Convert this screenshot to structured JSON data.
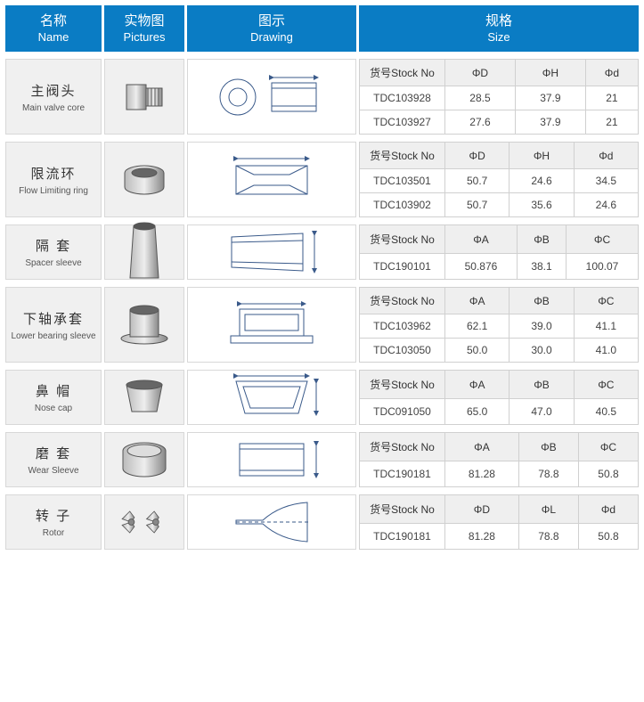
{
  "header": {
    "name": {
      "cn": "名称",
      "en": "Name"
    },
    "pictures": {
      "cn": "实物图",
      "en": "Pictures"
    },
    "drawing": {
      "cn": "图示",
      "en": "Drawing"
    },
    "size": {
      "cn": "规格",
      "en": "Size"
    }
  },
  "stockno_label": "货号Stock No",
  "colors": {
    "header_bg": "#0a7cc4",
    "header_fg": "#ffffff",
    "cell_bg": "#f0f0f0",
    "border": "#d8d8d8",
    "th_bg": "#efefef"
  },
  "sections": [
    {
      "name_cn": "主阀头",
      "name_en": "Main valve core",
      "cols": [
        "ΦD",
        "ΦH",
        "Φd"
      ],
      "rows": [
        {
          "stock": "TDC103928",
          "v": [
            "28.5",
            "37.9",
            "21"
          ]
        },
        {
          "stock": "TDC103927",
          "v": [
            "27.6",
            "37.9",
            "21"
          ]
        }
      ],
      "pic_kind": "cylinder-thread",
      "draw_kind": "cross-section-1"
    },
    {
      "name_cn": "限流环",
      "name_en": "Flow Limiting ring",
      "cols": [
        "ΦD",
        "ΦH",
        "Φd"
      ],
      "rows": [
        {
          "stock": "TDC103501",
          "v": [
            "50.7",
            "24.6",
            "34.5"
          ]
        },
        {
          "stock": "TDC103902",
          "v": [
            "50.7",
            "35.6",
            "24.6"
          ]
        }
      ],
      "pic_kind": "ring",
      "draw_kind": "cross-section-2"
    },
    {
      "name_cn": "隔 套",
      "name_en": "Spacer sleeve",
      "cols": [
        "ΦA",
        "ΦB",
        "ΦC"
      ],
      "rows": [
        {
          "stock": "TDC190101",
          "v": [
            "50.876",
            "38.1",
            "100.07"
          ]
        }
      ],
      "pic_kind": "tall-sleeve",
      "draw_kind": "cross-section-3"
    },
    {
      "name_cn": "下轴承套",
      "name_en": "Lower bearing sleeve",
      "cols": [
        "ΦA",
        "ΦB",
        "ΦC"
      ],
      "rows": [
        {
          "stock": "TDC103962",
          "v": [
            "62.1",
            "39.0",
            "41.1"
          ]
        },
        {
          "stock": "TDC103050",
          "v": [
            "50.0",
            "30.0",
            "41.0"
          ]
        }
      ],
      "pic_kind": "flange-sleeve",
      "draw_kind": "cross-section-4"
    },
    {
      "name_cn": "鼻 帽",
      "name_en": "Nose cap",
      "cols": [
        "ΦA",
        "ΦB",
        "ΦC"
      ],
      "rows": [
        {
          "stock": "TDC091050",
          "v": [
            "65.0",
            "47.0",
            "40.5"
          ]
        }
      ],
      "pic_kind": "cone-cap",
      "draw_kind": "cross-section-5"
    },
    {
      "name_cn": "磨 套",
      "name_en": "Wear Sleeve",
      "cols": [
        "ΦA",
        "ΦB",
        "ΦC"
      ],
      "rows": [
        {
          "stock": "TDC190181",
          "v": [
            "81.28",
            "78.8",
            "50.8"
          ]
        }
      ],
      "pic_kind": "short-ring",
      "draw_kind": "cross-section-6"
    },
    {
      "name_cn": "转 子",
      "name_en": "Rotor",
      "cols": [
        "ΦD",
        "ΦL",
        "Φd"
      ],
      "rows": [
        {
          "stock": "TDC190181",
          "v": [
            "81.28",
            "78.8",
            "50.8"
          ]
        }
      ],
      "pic_kind": "rotor",
      "draw_kind": "cross-section-7"
    }
  ]
}
